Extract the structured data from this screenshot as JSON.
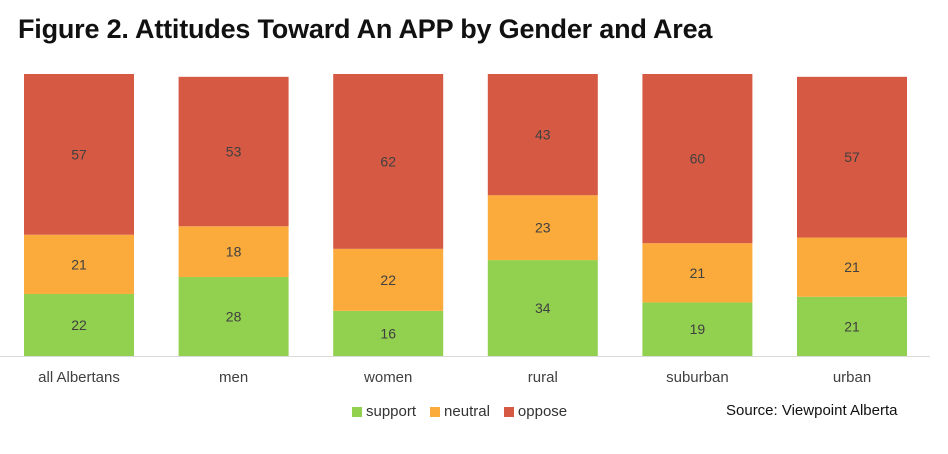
{
  "title": "Figure 2. Attitudes Toward An APP by Gender and Area",
  "source": "Source: Viewpoint Alberta",
  "colors": {
    "support": "#92d050",
    "neutral": "#fbab3c",
    "oppose": "#d65a43",
    "axis": "#d9d9d9",
    "label": "#404040"
  },
  "chart_data": {
    "type": "bar",
    "stacked": true,
    "categories": [
      "all Albertans",
      "men",
      "women",
      "rural",
      "suburban",
      "urban"
    ],
    "series": [
      {
        "name": "support",
        "values": [
          22,
          28,
          16,
          34,
          19,
          21
        ]
      },
      {
        "name": "neutral",
        "values": [
          21,
          18,
          22,
          23,
          21,
          21
        ]
      },
      {
        "name": "oppose",
        "values": [
          57,
          53,
          62,
          43,
          60,
          57
        ]
      }
    ],
    "ylim": [
      0,
      100
    ],
    "grid": false,
    "legend": "bottom"
  }
}
